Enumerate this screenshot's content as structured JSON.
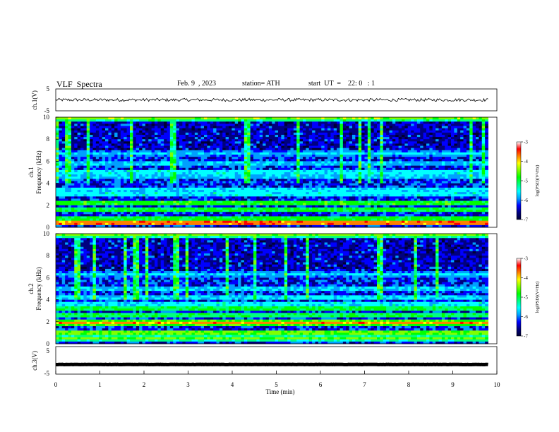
{
  "header": {
    "title": "VLF  Spectra",
    "date": "Feb. 9  , 2023",
    "station": "station= ATH",
    "start": "start  UT  =    22: 0   : 1"
  },
  "colors": {
    "colormap": [
      "#000033",
      "#000080",
      "#0000ff",
      "#00a0ff",
      "#00ffff",
      "#00ff80",
      "#00ff00",
      "#80ff00",
      "#ffff00",
      "#ff8000",
      "#ff0000",
      "#ffffff"
    ],
    "trace": "#000000",
    "axis": "#000000"
  },
  "chart_data": [
    {
      "type": "line",
      "name": "ch1-voltage",
      "ylabel": "ch.1(V)",
      "ylim": [
        -5,
        5
      ],
      "yticks": [
        "5",
        "-5"
      ],
      "xlim": [
        0,
        10
      ],
      "x_range_data": [
        0,
        9.8
      ],
      "level": 0,
      "noise": 0.7,
      "grid": false
    },
    {
      "type": "heatmap",
      "name": "ch1-spectrogram",
      "ylabel_lines": [
        "ch.1",
        "Frequency (kHz)"
      ],
      "ylim": [
        0,
        10
      ],
      "yticks": [
        "0",
        "2",
        "4",
        "6",
        "8",
        "10"
      ],
      "xlim": [
        0,
        10
      ],
      "x_range_data": [
        0,
        9.8
      ],
      "colorbar": {
        "label": "log(PSD)(V²/Hz)",
        "range": [
          -7,
          -3
        ],
        "ticks": [
          "-3",
          "-4",
          "-5",
          "-6",
          "-7"
        ]
      },
      "bands": [
        {
          "f": 0.4,
          "level": 0.95
        },
        {
          "f": 0.8,
          "level": 0.6
        },
        {
          "f": 1.6,
          "level": 0.58
        },
        {
          "f": 2.2,
          "level": 0.62
        },
        {
          "f": 3.0,
          "level": 0.4
        },
        {
          "f": 3.4,
          "level": 0.38
        },
        {
          "f": 4.6,
          "level": 0.35
        },
        {
          "f": 5.0,
          "level": 0.4
        },
        {
          "f": 5.8,
          "level": 0.34
        },
        {
          "f": 6.7,
          "level": 0.32
        },
        {
          "f": 9.9,
          "level": 0.62
        }
      ]
    },
    {
      "type": "heatmap",
      "name": "ch2-spectrogram",
      "ylabel_lines": [
        "ch.2",
        "Frequency (kHz)"
      ],
      "ylim": [
        0,
        10
      ],
      "yticks": [
        "0",
        "2",
        "4",
        "6",
        "8",
        "10"
      ],
      "xlim": [
        0,
        10
      ],
      "x_range_data": [
        0,
        9.8
      ],
      "colorbar": {
        "label": "log(PSD)(V²/Hz)",
        "range": [
          -7,
          -3
        ],
        "ticks": [
          "-3",
          "-4",
          "-5",
          "-6",
          "-7"
        ]
      },
      "bands": [
        {
          "f": 0.5,
          "level": 0.6
        },
        {
          "f": 1.0,
          "level": 0.7
        },
        {
          "f": 1.9,
          "level": 0.8
        },
        {
          "f": 2.6,
          "level": 0.55
        },
        {
          "f": 3.2,
          "level": 0.58
        },
        {
          "f": 3.6,
          "level": 0.4
        },
        {
          "f": 4.2,
          "level": 0.38
        },
        {
          "f": 5.0,
          "level": 0.36
        },
        {
          "f": 6.3,
          "level": 0.33
        },
        {
          "f": 9.9,
          "level": 0.6
        }
      ]
    },
    {
      "type": "line",
      "name": "ch3-voltage",
      "ylabel": "ch.3(V)",
      "ylim": [
        -5,
        5
      ],
      "yticks": [
        "5",
        "-5"
      ],
      "xlim": [
        0,
        10
      ],
      "x_range_data": [
        0,
        9.8
      ],
      "level": -1.5,
      "noise": 0.05,
      "xlabel": "Time  (min)",
      "xticks": [
        "0",
        "1",
        "2",
        "3",
        "4",
        "5",
        "6",
        "7",
        "8",
        "9",
        "10"
      ],
      "grid": false
    }
  ]
}
